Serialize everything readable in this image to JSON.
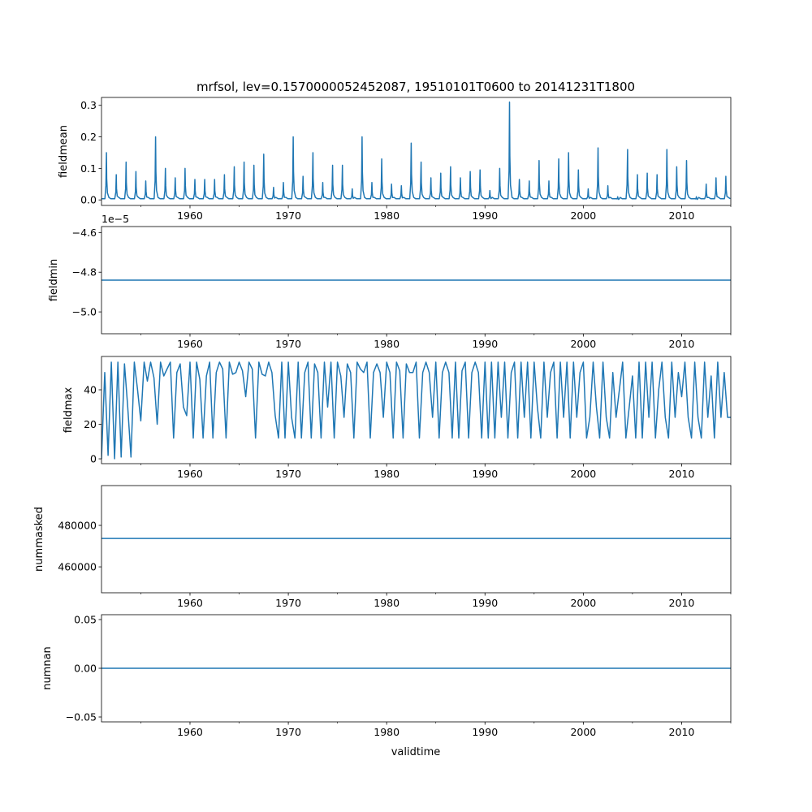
{
  "title": "mrfsol, lev=0.1570000052452087, 19510101T0600 to 20141231T1800",
  "xlabel": "validtime",
  "line_color": "#1f77b4",
  "chart_data": [
    {
      "type": "line",
      "ylabel": "fieldmean",
      "xlim": [
        1951.0,
        2015.0
      ],
      "ylim": [
        -0.0175,
        0.325
      ],
      "x_ticks": [
        "1960",
        "1970",
        "1980",
        "1990",
        "2000",
        "2010"
      ],
      "y_ticks": [
        {
          "v": 0.0,
          "label": "0.0"
        },
        {
          "v": 0.1,
          "label": "0.1"
        },
        {
          "v": 0.2,
          "label": "0.2"
        },
        {
          "v": 0.3,
          "label": "0.3"
        }
      ],
      "baseline": 0.004,
      "annual_peak_years_start": 1951,
      "annual_peaks": [
        0.15,
        0.08,
        0.12,
        0.09,
        0.06,
        0.2,
        0.1,
        0.07,
        0.1,
        0.065,
        0.065,
        0.065,
        0.08,
        0.105,
        0.12,
        0.11,
        0.145,
        0.04,
        0.055,
        0.2,
        0.075,
        0.15,
        0.055,
        0.11,
        0.11,
        0.035,
        0.2,
        0.055,
        0.13,
        0.05,
        0.045,
        0.18,
        0.12,
        0.07,
        0.085,
        0.105,
        0.07,
        0.09,
        0.095,
        0.03,
        0.1,
        0.31,
        0.065,
        0.06,
        0.125,
        0.06,
        0.13,
        0.15,
        0.095,
        0.035,
        0.165,
        0.045,
        0.01,
        0.16,
        0.08,
        0.085,
        0.08,
        0.16,
        0.105,
        0.125,
        0.01,
        0.05,
        0.07,
        0.075
      ]
    },
    {
      "type": "line",
      "ylabel": "fieldmin",
      "offset_label": "1e−5",
      "xlim": [
        1951.0,
        2015.0
      ],
      "ylim": [
        -5.11,
        -4.57
      ],
      "x_ticks": [
        "1960",
        "1970",
        "1980",
        "1990",
        "2000",
        "2010"
      ],
      "y_ticks": [
        {
          "v": -4.6,
          "label": "−4.6"
        },
        {
          "v": -4.8,
          "label": "−4.8"
        },
        {
          "v": -5.0,
          "label": "−5.0"
        }
      ],
      "constant_value": -4.84
    },
    {
      "type": "line",
      "ylabel": "fieldmax",
      "xlim": [
        1951.0,
        2015.0
      ],
      "ylim": [
        -2.8,
        59.3
      ],
      "x_ticks": [
        "1960",
        "1970",
        "1980",
        "1990",
        "2000",
        "2010"
      ],
      "y_ticks": [
        {
          "v": 0,
          "label": "0"
        },
        {
          "v": 20,
          "label": "20"
        },
        {
          "v": 40,
          "label": "40"
        }
      ],
      "samples_per_year": 3,
      "values": [
        0,
        50,
        2,
        56,
        0,
        56,
        1,
        55,
        30,
        1,
        56,
        40,
        22,
        56,
        45,
        56,
        47,
        20,
        56,
        48,
        52,
        56,
        12,
        50,
        55,
        30,
        25,
        56,
        12,
        56,
        46,
        12,
        48,
        56,
        12,
        50,
        56,
        52,
        12,
        56,
        49,
        50,
        56,
        51,
        36,
        56,
        52,
        12,
        56,
        49,
        48,
        56,
        50,
        25,
        12,
        56,
        12,
        56,
        24,
        12,
        56,
        12,
        50,
        56,
        12,
        55,
        50,
        12,
        56,
        30,
        56,
        12,
        56,
        48,
        24,
        55,
        50,
        12,
        56,
        52,
        50,
        56,
        12,
        50,
        55,
        50,
        24,
        56,
        50,
        12,
        56,
        51,
        12,
        55,
        50,
        50,
        56,
        12,
        50,
        56,
        50,
        24,
        56,
        12,
        50,
        56,
        50,
        12,
        56,
        12,
        51,
        56,
        12,
        50,
        56,
        50,
        12,
        56,
        12,
        56,
        12,
        56,
        24,
        56,
        12,
        50,
        56,
        12,
        56,
        24,
        56,
        12,
        56,
        30,
        12,
        56,
        24,
        50,
        56,
        12,
        56,
        24,
        56,
        12,
        56,
        24,
        50,
        56,
        12,
        24,
        56,
        30,
        12,
        56,
        24,
        12,
        50,
        24,
        40,
        56,
        12,
        30,
        48,
        12,
        56,
        12,
        56,
        24,
        56,
        12,
        40,
        56,
        24,
        12,
        56,
        24,
        50,
        36,
        56,
        24,
        12,
        56,
        24,
        12,
        56,
        24,
        48,
        12,
        56,
        24,
        50,
        24,
        24
      ]
    },
    {
      "type": "line",
      "ylabel": "nummasked",
      "xlim": [
        1951.0,
        2015.0
      ],
      "ylim": [
        447500,
        499200
      ],
      "x_ticks": [
        "1960",
        "1970",
        "1980",
        "1990",
        "2000",
        "2010"
      ],
      "y_ticks": [
        {
          "v": 460000,
          "label": "460000"
        },
        {
          "v": 480000,
          "label": "480000"
        }
      ],
      "constant_value": 473700
    },
    {
      "type": "line",
      "ylabel": "numnan",
      "xlim": [
        1951.0,
        2015.0
      ],
      "ylim": [
        -0.055,
        0.055
      ],
      "x_ticks": [
        "1960",
        "1970",
        "1980",
        "1990",
        "2000",
        "2010"
      ],
      "y_ticks": [
        {
          "v": -0.05,
          "label": "−0.05"
        },
        {
          "v": 0.0,
          "label": "0.00"
        },
        {
          "v": 0.05,
          "label": "0.05"
        }
      ],
      "constant_value": 0.0
    }
  ]
}
